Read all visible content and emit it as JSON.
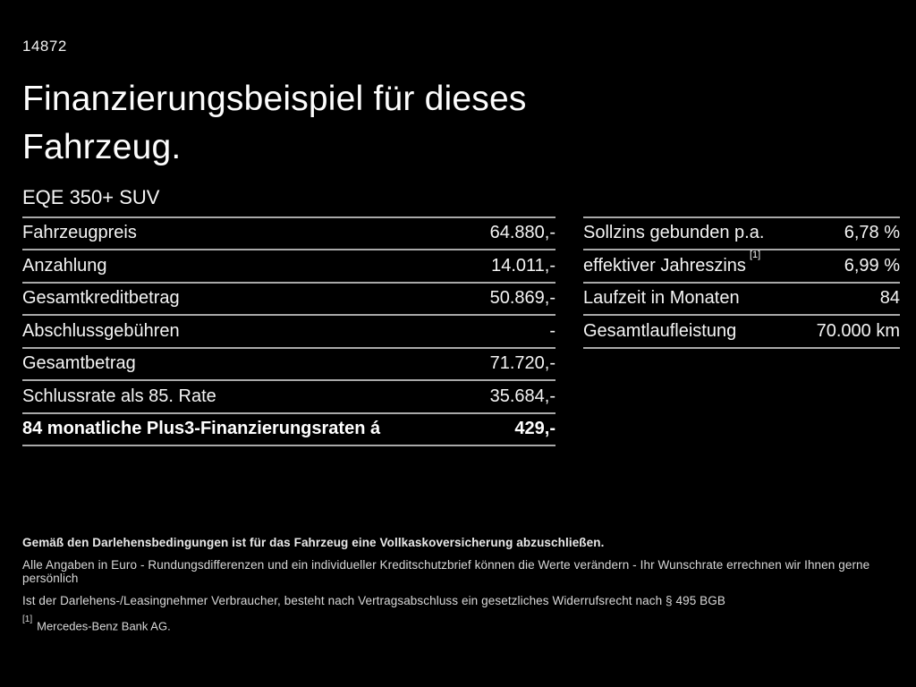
{
  "page": {
    "background_color": "#000000",
    "text_color": "#ffffff",
    "divider_color": "#a9a9a9",
    "ref_number": "14872",
    "title_line1": "Finanzierungsbeispiel für dieses",
    "title_line2": "Fahrzeug.",
    "model": "EQE 350+ SUV"
  },
  "finance_table": {
    "rows": [
      {
        "label": "Fahrzeugpreis",
        "value": "64.880,-"
      },
      {
        "label": "Anzahlung",
        "value": "14.011,-"
      },
      {
        "label": "Gesamtkreditbetrag",
        "value": "50.869,-"
      },
      {
        "label": "Abschlussgebühren",
        "value": "-"
      },
      {
        "label": "Gesamtbetrag",
        "value": "71.720,-"
      },
      {
        "label": "Schlussrate als 85. Rate",
        "value": "35.684,-"
      },
      {
        "label": "84 monatliche Plus3-Finanzierungsraten á",
        "value": "429,-"
      }
    ]
  },
  "conditions_table": {
    "rows": [
      {
        "label": "Sollzins gebunden p.a.",
        "value": "6,78 %"
      },
      {
        "label": "effektiver Jahreszins",
        "sup": "[1]",
        "value": "6,99 %"
      },
      {
        "label": "Laufzeit in Monaten",
        "value": "84"
      },
      {
        "label": "Gesamtlaufleistung",
        "value": "70.000 km"
      }
    ]
  },
  "footnotes": {
    "insurance_note": "Gemäß den Darlehensbedingungen ist für das Fahrzeug eine Vollkaskoversicherung abzuschließen.",
    "disclaimer_values": "Alle Angaben in Euro - Rundungsdifferenzen und ein individueller Kreditschutzbrief können die Werte verändern - Ihr Wunschrate errechnen wir Ihnen gerne persönlich",
    "disclaimer_withdrawal": "Ist der Darlehens-/Leasingnehmer Verbraucher, besteht nach Vertragsabschluss ein gesetzliches Widerrufsrecht nach § 495 BGB",
    "bank_marker": "[1]",
    "bank_name": "Mercedes-Benz Bank AG."
  }
}
